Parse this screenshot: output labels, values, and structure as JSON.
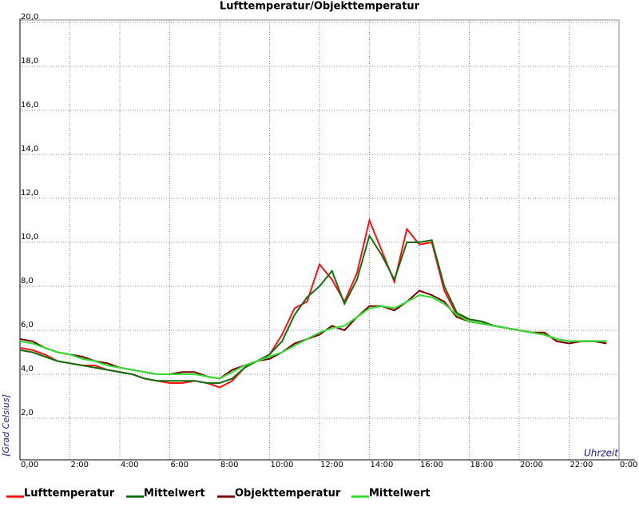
{
  "chart_data": {
    "type": "line",
    "title": "Lufttemperatur/Objekttemperatur",
    "x_label": "Uhrzeit",
    "y_label": "[Grad Celsius]",
    "x": [
      0,
      0.5,
      1,
      1.5,
      2,
      2.5,
      3,
      3.5,
      4,
      4.5,
      5,
      5.5,
      6,
      6.5,
      7,
      7.5,
      8,
      8.5,
      9,
      9.5,
      10,
      10.5,
      11,
      11.5,
      12,
      12.5,
      13,
      13.5,
      14,
      14.5,
      15,
      15.5,
      16,
      16.5,
      17,
      17.5,
      18,
      18.5,
      19,
      19.5,
      20,
      20.5,
      21,
      21.5,
      22,
      22.5,
      23,
      23.5
    ],
    "xlim": [
      0,
      24
    ],
    "xticks": [
      {
        "value": 0,
        "label": "0,00"
      },
      {
        "value": 2,
        "label": "2:00"
      },
      {
        "value": 4,
        "label": "4:00"
      },
      {
        "value": 6,
        "label": "6:00"
      },
      {
        "value": 8,
        "label": "8:00"
      },
      {
        "value": 10,
        "label": "10:00"
      },
      {
        "value": 12,
        "label": "12:00"
      },
      {
        "value": 14,
        "label": "14:00"
      },
      {
        "value": 16,
        "label": "16:00"
      },
      {
        "value": 18,
        "label": "18:00"
      },
      {
        "value": 20,
        "label": "20:00"
      },
      {
        "value": 22,
        "label": "22:00"
      },
      {
        "value": 24,
        "label": "0:00"
      }
    ],
    "ylim": [
      0,
      20
    ],
    "yticks": [
      {
        "value": 2,
        "label": "2,0"
      },
      {
        "value": 4,
        "label": "4,0"
      },
      {
        "value": 6,
        "label": "6,0"
      },
      {
        "value": 8,
        "label": "8,0"
      },
      {
        "value": 10,
        "label": "10,0"
      },
      {
        "value": 12,
        "label": "12,0"
      },
      {
        "value": 14,
        "label": "14,0"
      },
      {
        "value": 16,
        "label": "16,0"
      },
      {
        "value": 18,
        "label": "18,0"
      },
      {
        "value": 20,
        "label": "20,0"
      }
    ],
    "grid": true,
    "series": [
      {
        "name": "Lufttemperatur",
        "color": "#ff1010",
        "values": [
          5.2,
          5.1,
          4.9,
          4.6,
          4.5,
          4.4,
          4.4,
          4.2,
          4.1,
          4.0,
          3.8,
          3.7,
          3.6,
          3.6,
          3.7,
          3.6,
          3.4,
          3.7,
          4.3,
          4.6,
          4.9,
          5.8,
          7.0,
          7.3,
          9.0,
          8.3,
          7.3,
          8.6,
          11.0,
          9.6,
          8.2,
          10.6,
          9.9,
          10.0,
          7.8,
          6.7,
          6.5,
          6.4,
          6.2,
          6.1,
          6.0,
          5.9,
          5.8,
          5.6,
          5.5,
          5.5,
          5.5,
          5.5
        ]
      },
      {
        "name": "Mittelwert",
        "color": "#107010",
        "values": [
          5.1,
          5.0,
          4.8,
          4.6,
          4.5,
          4.4,
          4.3,
          4.2,
          4.1,
          4.0,
          3.8,
          3.7,
          3.7,
          3.7,
          3.7,
          3.6,
          3.6,
          3.8,
          4.3,
          4.6,
          4.9,
          5.5,
          6.7,
          7.5,
          8.0,
          8.7,
          7.2,
          8.3,
          10.3,
          9.4,
          8.3,
          10.0,
          10.0,
          10.1,
          8.0,
          6.8,
          6.5,
          6.4,
          6.2,
          6.1,
          6.0,
          5.9,
          5.8,
          5.6,
          5.5,
          5.5,
          5.5,
          5.5
        ]
      },
      {
        "name": "Objekttemperatur",
        "color": "#7a0000",
        "values": [
          5.6,
          5.5,
          5.2,
          5.0,
          4.9,
          4.8,
          4.6,
          4.5,
          4.3,
          4.2,
          4.1,
          4.0,
          4.0,
          4.1,
          4.1,
          3.9,
          3.8,
          4.2,
          4.4,
          4.6,
          4.7,
          5.0,
          5.4,
          5.6,
          5.8,
          6.2,
          6.0,
          6.6,
          7.1,
          7.1,
          6.9,
          7.3,
          7.8,
          7.6,
          7.3,
          6.6,
          6.4,
          6.3,
          6.2,
          6.1,
          6.0,
          5.9,
          5.9,
          5.5,
          5.4,
          5.5,
          5.5,
          5.4
        ]
      },
      {
        "name": "Mittelwert",
        "color": "#30e030",
        "values": [
          5.5,
          5.4,
          5.2,
          5.0,
          4.9,
          4.7,
          4.6,
          4.4,
          4.3,
          4.2,
          4.1,
          4.0,
          4.0,
          4.0,
          4.0,
          3.9,
          3.8,
          4.1,
          4.4,
          4.6,
          4.8,
          5.0,
          5.3,
          5.6,
          5.9,
          6.1,
          6.2,
          6.6,
          7.0,
          7.1,
          7.0,
          7.3,
          7.6,
          7.5,
          7.2,
          6.7,
          6.4,
          6.3,
          6.2,
          6.1,
          6.0,
          5.9,
          5.8,
          5.6,
          5.5,
          5.5,
          5.5,
          5.5
        ]
      }
    ]
  }
}
